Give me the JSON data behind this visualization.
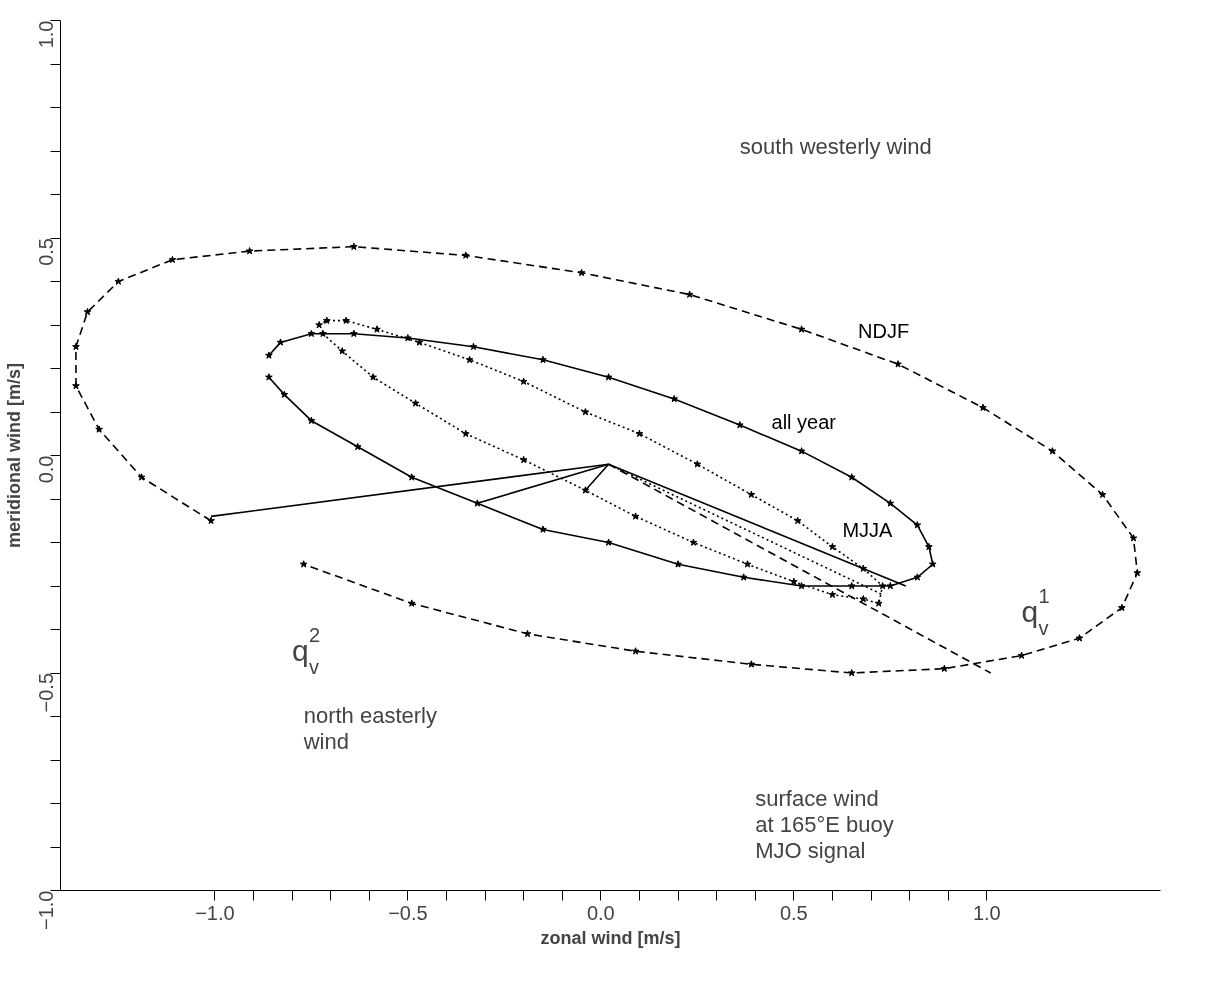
{
  "chart_data": {
    "type": "line",
    "xlabel": "zonal wind [m/s]",
    "ylabel": "meridional wind [m/s]",
    "xlim": [
      -1.4,
      1.45
    ],
    "ylim": [
      -1.0,
      1.0
    ],
    "xticks": [
      {
        "value": -1.0,
        "label": "−1.0"
      },
      {
        "value": -0.9,
        "label": null
      },
      {
        "value": -0.8,
        "label": null
      },
      {
        "value": -0.7,
        "label": null
      },
      {
        "value": -0.6,
        "label": null
      },
      {
        "value": -0.5,
        "label": "−0.5"
      },
      {
        "value": -0.4,
        "label": null
      },
      {
        "value": -0.3,
        "label": null
      },
      {
        "value": -0.2,
        "label": null
      },
      {
        "value": -0.1,
        "label": null
      },
      {
        "value": 0.0,
        "label": "0.0"
      },
      {
        "value": 0.1,
        "label": null
      },
      {
        "value": 0.2,
        "label": null
      },
      {
        "value": 0.3,
        "label": null
      },
      {
        "value": 0.4,
        "label": null
      },
      {
        "value": 0.5,
        "label": "0.5"
      },
      {
        "value": 0.6,
        "label": null
      },
      {
        "value": 0.7,
        "label": null
      },
      {
        "value": 0.8,
        "label": null
      },
      {
        "value": 0.9,
        "label": null
      },
      {
        "value": 1.0,
        "label": "1.0"
      }
    ],
    "yticks": [
      {
        "value": -1.0,
        "label": "−1.0"
      },
      {
        "value": -0.9,
        "label": null
      },
      {
        "value": -0.8,
        "label": null
      },
      {
        "value": -0.7,
        "label": null
      },
      {
        "value": -0.6,
        "label": null
      },
      {
        "value": -0.5,
        "label": "−0.5"
      },
      {
        "value": -0.4,
        "label": null
      },
      {
        "value": -0.3,
        "label": null
      },
      {
        "value": -0.2,
        "label": null
      },
      {
        "value": -0.1,
        "label": null
      },
      {
        "value": 0.0,
        "label": "0.0"
      },
      {
        "value": 0.1,
        "label": null
      },
      {
        "value": 0.2,
        "label": null
      },
      {
        "value": 0.3,
        "label": null
      },
      {
        "value": 0.4,
        "label": null
      },
      {
        "value": 0.5,
        "label": "0.5"
      },
      {
        "value": 0.6,
        "label": null
      },
      {
        "value": 0.7,
        "label": null
      },
      {
        "value": 0.8,
        "label": null
      },
      {
        "value": 0.9,
        "label": null
      },
      {
        "value": 1.0,
        "label": "1.0"
      }
    ],
    "grid": false,
    "legend": false,
    "marker": "star",
    "series": [
      {
        "name": "NDJF",
        "color": "#000000",
        "line_style": "dashed",
        "x": [
          -1.01,
          -1.19,
          -1.3,
          -1.36,
          -1.36,
          -1.33,
          -1.25,
          -1.11,
          -0.91,
          -0.64,
          -0.35,
          -0.05,
          0.23,
          0.52,
          0.77,
          0.99,
          1.17,
          1.3,
          1.38,
          1.39,
          1.35,
          1.24,
          1.09,
          0.89,
          0.65,
          0.39,
          0.09,
          -0.19,
          -0.49,
          -0.77
        ],
        "values": [
          -0.15,
          -0.05,
          0.06,
          0.16,
          0.25,
          0.33,
          0.4,
          0.45,
          0.47,
          0.48,
          0.46,
          0.42,
          0.37,
          0.29,
          0.21,
          0.11,
          0.01,
          -0.09,
          -0.19,
          -0.27,
          -0.35,
          -0.42,
          -0.46,
          -0.49,
          -0.5,
          -0.48,
          -0.45,
          -0.41,
          -0.34,
          -0.25
        ]
      },
      {
        "name": "all year",
        "color": "#000000",
        "line_style": "solid",
        "x": [
          -0.86,
          -0.83,
          -0.75,
          -0.64,
          -0.5,
          -0.33,
          -0.15,
          0.02,
          0.19,
          0.36,
          0.52,
          0.65,
          0.75,
          0.82,
          0.85,
          0.86,
          0.82,
          0.75,
          0.65,
          0.52,
          0.37,
          0.2,
          0.02,
          -0.15,
          -0.32,
          -0.49,
          -0.63,
          -0.75,
          -0.82,
          -0.86
        ],
        "values": [
          0.23,
          0.26,
          0.28,
          0.28,
          0.27,
          0.25,
          0.22,
          0.18,
          0.13,
          0.07,
          0.01,
          -0.05,
          -0.11,
          -0.16,
          -0.21,
          -0.25,
          -0.28,
          -0.3,
          -0.3,
          -0.3,
          -0.28,
          -0.25,
          -0.2,
          -0.17,
          -0.11,
          -0.05,
          0.02,
          0.08,
          0.14,
          0.18
        ]
      },
      {
        "name": "MJJA",
        "color": "#000000",
        "line_style": "dotted",
        "x": [
          -0.73,
          -0.71,
          -0.66,
          -0.58,
          -0.47,
          -0.34,
          -0.2,
          -0.04,
          0.1,
          0.25,
          0.39,
          0.51,
          0.6,
          0.68,
          0.73,
          0.72,
          0.68,
          0.6,
          0.5,
          0.38,
          0.24,
          0.09,
          -0.04,
          -0.2,
          -0.35,
          -0.48,
          -0.59,
          -0.67,
          -0.72
        ],
        "values": [
          0.3,
          0.31,
          0.31,
          0.29,
          0.26,
          0.22,
          0.17,
          0.1,
          0.05,
          -0.02,
          -0.09,
          -0.15,
          -0.21,
          -0.26,
          -0.3,
          -0.34,
          -0.33,
          -0.32,
          -0.29,
          -0.25,
          -0.2,
          -0.14,
          -0.08,
          -0.01,
          0.05,
          0.12,
          0.18,
          0.24,
          0.28
        ]
      },
      {
        "color": "#000000",
        "line_style": "solid",
        "marker": "none",
        "x": [
          0.02,
          -1.01
        ],
        "values": [
          -0.02,
          -0.14
        ]
      },
      {
        "color": "#000000",
        "line_style": "solid",
        "marker": "none",
        "x": [
          0.02,
          -0.32
        ],
        "values": [
          -0.02,
          -0.11
        ]
      },
      {
        "color": "#000000",
        "line_style": "solid",
        "marker": "none",
        "x": [
          0.02,
          -0.04
        ],
        "values": [
          -0.02,
          -0.08
        ]
      },
      {
        "color": "#000000",
        "line_style": "solid",
        "marker": "none",
        "x": [
          0.02,
          0.79
        ],
        "values": [
          -0.02,
          -0.3
        ]
      },
      {
        "color": "#000000",
        "line_style": "dashed",
        "marker": "none",
        "x": [
          0.02,
          1.01
        ],
        "values": [
          -0.02,
          -0.5
        ]
      },
      {
        "color": "#000000",
        "line_style": "dotted",
        "marker": "none",
        "x": [
          0.02,
          0.73
        ],
        "values": [
          -0.02,
          -0.32
        ]
      }
    ],
    "annotations": [
      "south westerly wind",
      "north easterly\nwind",
      "surface wind\nat 165°E buoy\nMJO signal",
      "q$_{v}$$^{2}$",
      "q$_{v}$$^{1}$"
    ]
  }
}
